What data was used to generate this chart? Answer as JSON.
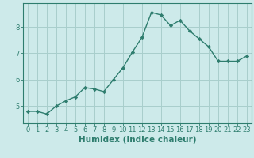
{
  "x": [
    0,
    1,
    2,
    3,
    4,
    5,
    6,
    7,
    8,
    9,
    10,
    11,
    12,
    13,
    14,
    15,
    16,
    17,
    18,
    19,
    20,
    21,
    22,
    23
  ],
  "y": [
    4.8,
    4.8,
    4.7,
    5.0,
    5.2,
    5.35,
    5.7,
    5.65,
    5.55,
    6.0,
    6.45,
    7.05,
    7.6,
    8.55,
    8.45,
    8.05,
    8.25,
    7.85,
    7.55,
    7.25,
    6.7,
    6.7,
    6.7,
    6.9
  ],
  "line_color": "#2e7d6e",
  "marker": "D",
  "marker_size": 2.2,
  "line_width": 1.0,
  "bg_color": "#cdeaea",
  "grid_color": "#a8cecc",
  "xlabel": "Humidex (Indice chaleur)",
  "xlabel_fontsize": 7.5,
  "tick_fontsize": 6.0,
  "ylabel_ticks": [
    5,
    6,
    7,
    8
  ],
  "xlim": [
    -0.5,
    23.5
  ],
  "ylim": [
    4.35,
    8.9
  ],
  "title": ""
}
